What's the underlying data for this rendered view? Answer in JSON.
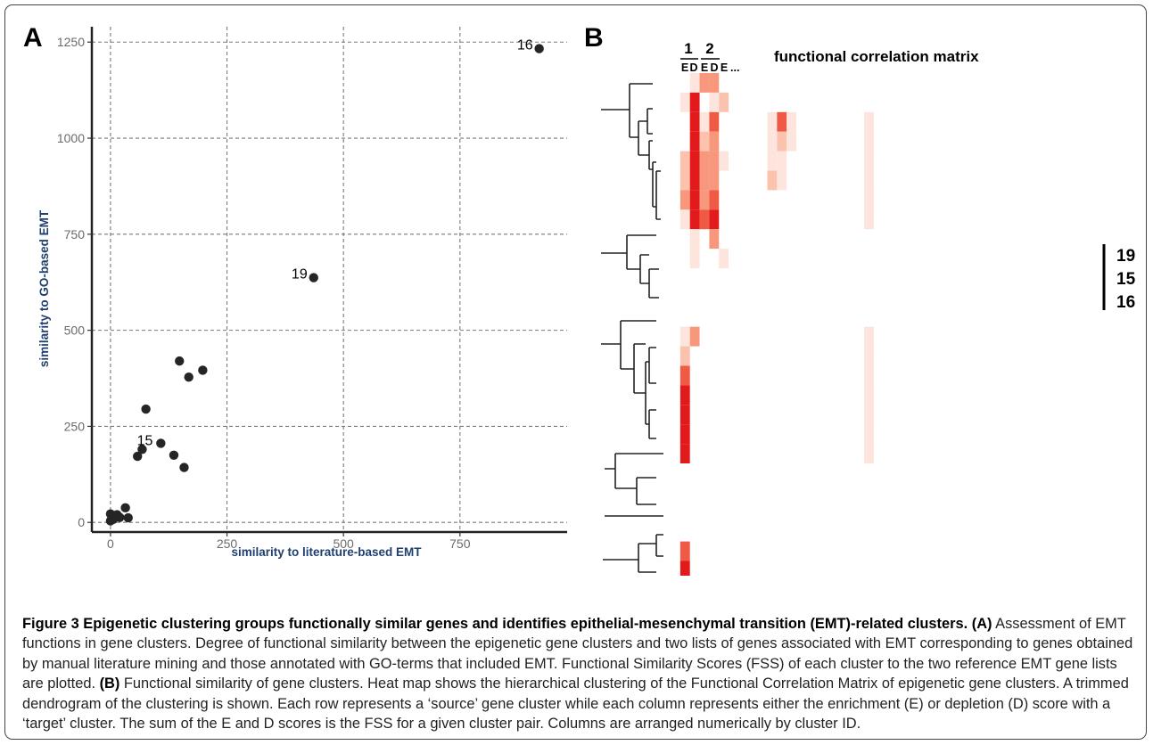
{
  "panel_a": {
    "letter": "A",
    "chart_data": {
      "type": "scatter",
      "xlabel": "similarity to literature-based EMT",
      "ylabel": "similarity to GO-based EMT",
      "xlim": [
        -40,
        980
      ],
      "ylim": [
        -25,
        1290
      ],
      "xticks": [
        0,
        250,
        500,
        750
      ],
      "yticks": [
        0,
        250,
        500,
        750,
        1000,
        1250
      ],
      "grid": "dashed major gridlines",
      "points": [
        {
          "x": 920,
          "y": 1233,
          "label": "16"
        },
        {
          "x": 436,
          "y": 637,
          "label": "19"
        },
        {
          "x": 68,
          "y": 190,
          "label": "15"
        },
        {
          "x": 148,
          "y": 420
        },
        {
          "x": 168,
          "y": 378
        },
        {
          "x": 198,
          "y": 396
        },
        {
          "x": 76,
          "y": 295
        },
        {
          "x": 108,
          "y": 206
        },
        {
          "x": 136,
          "y": 175
        },
        {
          "x": 58,
          "y": 172
        },
        {
          "x": 158,
          "y": 143
        },
        {
          "x": 32,
          "y": 38
        },
        {
          "x": 0,
          "y": 22
        },
        {
          "x": 14,
          "y": 20
        },
        {
          "x": 20,
          "y": 13
        },
        {
          "x": 38,
          "y": 12
        },
        {
          "x": 0,
          "y": 4
        },
        {
          "x": 6,
          "y": 8
        }
      ]
    }
  },
  "panel_b": {
    "letter": "B",
    "chart_data": {
      "type": "heatmap",
      "title": "functional correlation matrix",
      "column_groups": [
        "1",
        "2"
      ],
      "column_labels": [
        "E",
        "D",
        "E",
        "D",
        "E"
      ],
      "column_ellipsis": "...",
      "side_labels": [
        "19",
        "15",
        "16"
      ],
      "n_rows": 26,
      "n_cols": 44,
      "colorscale": {
        "low": "#ffffff",
        "high": "#e31a1c"
      },
      "rows": [
        "0013300000000000000000000000000000000000000000",
        "0150120000000000000000000000000000000000000000",
        "0051400000141000000010000000000000000000000000",
        "0052300000121000000010000000000000000000000000",
        "0253310000110000000010000000000000000000000000",
        "0253300000210000000010000000000000000000000000",
        "0353400000000000000010000000000000000000000000",
        "0154500000000000000010000000000000000000000000",
        "0010300000000000000000000000000000000000000000",
        "0010010000000000000000000000000000000000000000",
        "0000000000000000000000000000000000000000000000",
        "0000000000000000000000000000000000000000000000",
        "0000000000000000000000000000000000000000000000",
        "0130000000000000000010000000000000000000000000",
        "0200000000000000000010000000000000000000000000",
        "0400000000000000000010000000000000000000000000",
        "0500000000000000000010000000000000000000000000",
        "0500000000000000000010000000000000000000000000",
        "0500000000000000000010000000000000000000000000",
        "0500000000000000000010000000000000000000000000",
        "0000000000000000000000000000000000000000000000",
        "0000000000000000000000000000000000000000000000",
        "0000000000000000000000000000000000000000000000",
        "0000000000000000000000000000000000000000000000",
        "0400000000000000000000000000000000000000000000",
        "0500000000000000000000000000000000000000000000"
      ]
    }
  },
  "caption": {
    "lead": "Figure 3 Epigenetic clustering groups functionally similar genes and identifies epithelial-mesenchymal transition (EMT)-related clusters.",
    "a_tag": "(A)",
    "a_text": " Assessment of EMT functions in gene clusters. Degree of functional similarity between the epigenetic gene clusters and two lists of genes associated with EMT corresponding to genes obtained by manual literature mining and those annotated with GO-terms that included EMT. Functional Similarity Scores (FSS) of each cluster to the two reference EMT gene lists are plotted. ",
    "b_tag": "(B)",
    "b_text": " Functional similarity of gene clusters. Heat map shows the hierarchical clustering of the Functional Correlation Matrix of epigenetic gene clusters. A trimmed dendrogram of the clustering is shown. Each row represents a ‘source’ gene cluster while each column represents either the enrichment (E) or depletion (D) score with a ‘target’ cluster. The sum of the E and D scores is the FSS for a given cluster pair. Columns are arranged numerically by cluster ID."
  }
}
